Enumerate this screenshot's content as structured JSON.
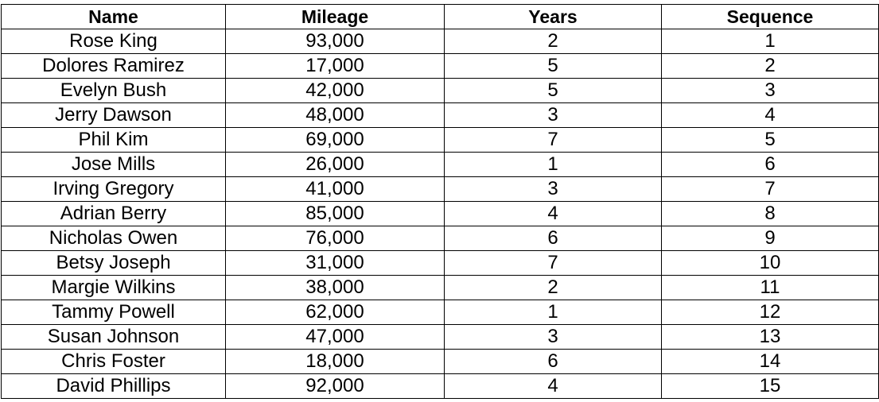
{
  "table": {
    "headers": [
      "Name",
      "Mileage",
      "Years",
      "Sequence"
    ],
    "rows": [
      [
        "Rose King",
        "93,000",
        "2",
        "1"
      ],
      [
        "Dolores Ramirez",
        "17,000",
        "5",
        "2"
      ],
      [
        "Evelyn Bush",
        "42,000",
        "5",
        "3"
      ],
      [
        "Jerry Dawson",
        "48,000",
        "3",
        "4"
      ],
      [
        "Phil Kim",
        "69,000",
        "7",
        "5"
      ],
      [
        "Jose Mills",
        "26,000",
        "1",
        "6"
      ],
      [
        "Irving Gregory",
        "41,000",
        "3",
        "7"
      ],
      [
        "Adrian Berry",
        "85,000",
        "4",
        "8"
      ],
      [
        "Nicholas Owen",
        "76,000",
        "6",
        "9"
      ],
      [
        "Betsy Joseph",
        "31,000",
        "7",
        "10"
      ],
      [
        "Margie Wilkins",
        "38,000",
        "2",
        "11"
      ],
      [
        "Tammy Powell",
        "62,000",
        "1",
        "12"
      ],
      [
        "Susan Johnson",
        "47,000",
        "3",
        "13"
      ],
      [
        "Chris Foster",
        "18,000",
        "6",
        "14"
      ],
      [
        "David Phillips",
        "92,000",
        "4",
        "15"
      ]
    ]
  }
}
